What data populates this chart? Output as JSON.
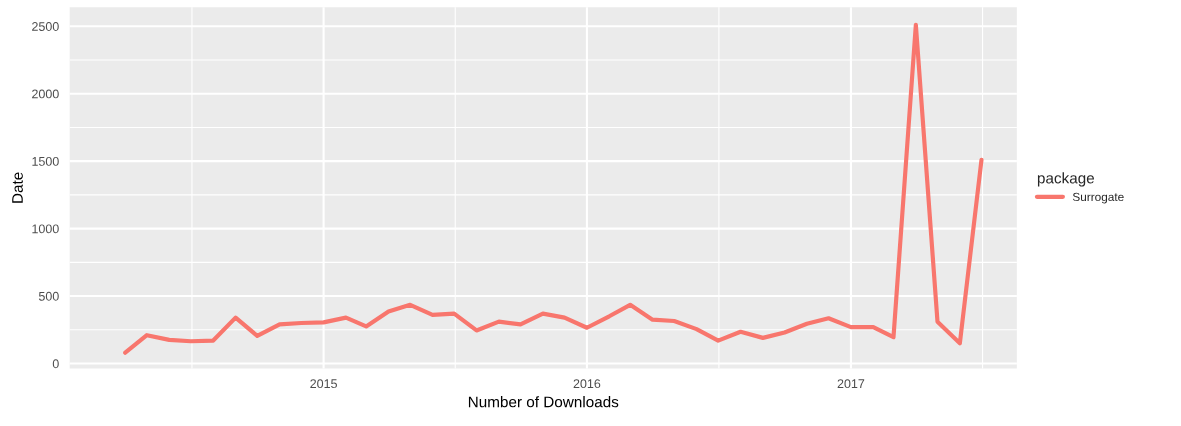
{
  "chart_data": {
    "type": "line",
    "xlabel": "Number of Downloads",
    "ylabel": "Date",
    "legend_title": "package",
    "x": [
      "2014-04",
      "2014-05",
      "2014-06",
      "2014-07",
      "2014-08",
      "2014-09",
      "2014-10",
      "2014-11",
      "2014-12",
      "2015-01",
      "2015-02",
      "2015-03",
      "2015-04",
      "2015-05",
      "2015-06",
      "2015-07",
      "2015-08",
      "2015-09",
      "2015-10",
      "2015-11",
      "2015-12",
      "2016-01",
      "2016-02",
      "2016-03",
      "2016-04",
      "2016-05",
      "2016-06",
      "2016-07",
      "2016-08",
      "2016-09",
      "2016-10",
      "2016-11",
      "2016-12",
      "2017-01",
      "2017-02",
      "2017-03",
      "2017-04",
      "2017-05",
      "2017-06",
      "2017-07"
    ],
    "series": [
      {
        "name": "Surrogate",
        "color": "#f8766d",
        "values": [
          80,
          210,
          175,
          165,
          170,
          340,
          205,
          290,
          300,
          305,
          340,
          275,
          385,
          435,
          360,
          370,
          245,
          310,
          290,
          370,
          340,
          265,
          350,
          435,
          325,
          315,
          255,
          170,
          235,
          190,
          230,
          295,
          335,
          270,
          270,
          195,
          2510,
          310,
          150,
          1510
        ]
      }
    ],
    "xlim": [
      "2014-01-14",
      "2017-08-19"
    ],
    "xticks": [
      {
        "value": "2015-01-01",
        "label": "2015"
      },
      {
        "value": "2016-01-01",
        "label": "2016"
      },
      {
        "value": "2017-01-01",
        "label": "2017"
      }
    ],
    "ylim": [
      -37,
      2641
    ],
    "yticks": [
      0,
      500,
      1000,
      1500,
      2000,
      2500
    ],
    "grid": true,
    "legend": "right",
    "line_style": "solid",
    "marker": "none"
  }
}
